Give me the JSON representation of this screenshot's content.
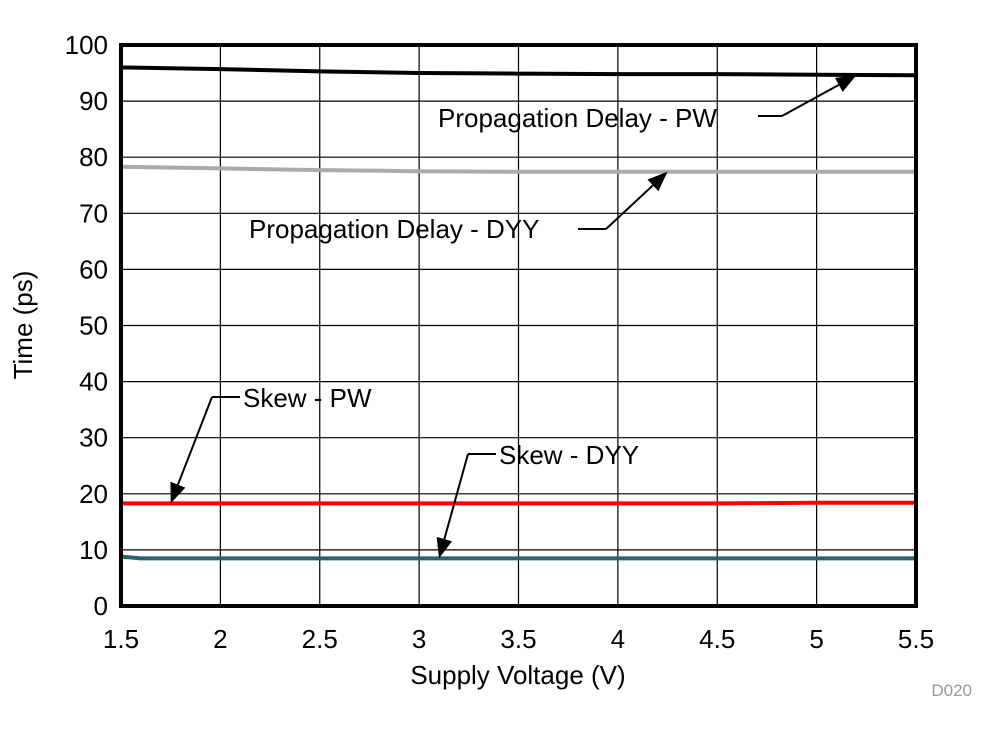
{
  "chart_data": {
    "type": "line",
    "title": "",
    "xlabel": "Supply Voltage (V)",
    "ylabel": "Time (ps)",
    "xlim": [
      1.5,
      5.5
    ],
    "ylim": [
      0,
      100
    ],
    "x_ticks": [
      "1.5",
      "2",
      "2.5",
      "3",
      "3.5",
      "4",
      "4.5",
      "5",
      "5.5"
    ],
    "y_ticks": [
      "0",
      "10",
      "20",
      "30",
      "40",
      "50",
      "60",
      "70",
      "80",
      "90",
      "100"
    ],
    "grid": true,
    "series": [
      {
        "name": "Propagation Delay - PW",
        "color": "#000000",
        "x": [
          1.5,
          2,
          2.5,
          3,
          3.5,
          4,
          4.5,
          5,
          5.5
        ],
        "y": [
          96.0,
          95.7,
          95.3,
          95.0,
          94.9,
          94.8,
          94.8,
          94.7,
          94.6
        ],
        "label_at": [
          1.8,
          92.0
        ],
        "arrow_to": [
          5.2,
          94.6
        ]
      },
      {
        "name": "Propagation Delay - DYY",
        "color": "#AAAAAA",
        "x": [
          1.5,
          2,
          2.5,
          3,
          3.5,
          4,
          4.5,
          5,
          5.5
        ],
        "y": [
          78.3,
          78.0,
          77.7,
          77.5,
          77.4,
          77.4,
          77.4,
          77.4,
          77.4
        ],
        "label_at": [
          1.8,
          72.0
        ],
        "arrow_to": [
          4.25,
          77.4
        ]
      },
      {
        "name": "Skew - PW",
        "color": "#FF0000",
        "x": [
          1.5,
          2,
          2.5,
          3,
          3.5,
          4,
          4.5,
          5,
          5.5
        ],
        "y": [
          18.3,
          18.3,
          18.3,
          18.3,
          18.3,
          18.3,
          18.3,
          18.4,
          18.4
        ],
        "label_at": [
          1.75,
          37.0
        ],
        "arrow_to": [
          1.75,
          18.3
        ]
      },
      {
        "name": "Skew - DYY",
        "color": "#2E5F73",
        "x": [
          1.5,
          1.6,
          2,
          2.5,
          3,
          3.5,
          4,
          4.5,
          5,
          5.5
        ],
        "y": [
          8.8,
          8.5,
          8.5,
          8.5,
          8.5,
          8.5,
          8.5,
          8.5,
          8.5,
          8.5
        ],
        "label_at": [
          3.1,
          27.0
        ],
        "arrow_to": [
          3.1,
          8.5
        ]
      }
    ],
    "watermark": "D020"
  }
}
